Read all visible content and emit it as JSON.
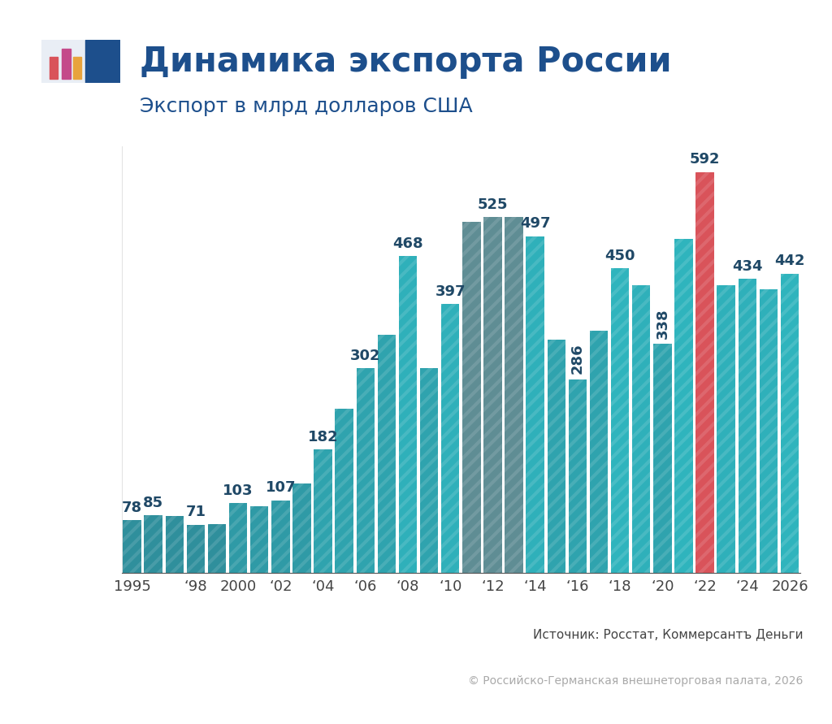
{
  "chart_data": {
    "type": "bar",
    "title": "Динамика экспорта России",
    "subtitle": "Экспорт в млрд долларов США",
    "source": "Источник: Росстат, Коммерсантъ Деньги",
    "copyright": "© Российско-Германская внешнеторговая палата, 2026",
    "categories": [
      "1995",
      null,
      null,
      "‘98",
      null,
      "2000",
      null,
      "‘02",
      null,
      "‘04",
      null,
      "‘06",
      null,
      "‘08",
      null,
      "‘10",
      null,
      "‘12",
      null,
      "‘14",
      null,
      "‘16",
      null,
      "‘18",
      null,
      "‘20",
      null,
      "‘22",
      null,
      "‘24",
      null,
      "2026"
    ],
    "values": [
      78,
      85,
      84,
      71,
      72,
      103,
      98,
      107,
      132,
      182,
      242,
      302,
      352,
      468,
      302,
      397,
      518,
      525,
      526,
      497,
      344,
      286,
      358,
      450,
      425,
      338,
      493,
      592,
      425,
      434,
      419,
      442
    ],
    "value_labels": [
      "78",
      "85",
      null,
      "71",
      null,
      "103",
      null,
      "107",
      null,
      "182",
      null,
      "302",
      null,
      "468",
      null,
      "397",
      null,
      "525",
      null,
      "497",
      null,
      "286",
      null,
      "450",
      null,
      "338",
      null,
      "592",
      null,
      "434",
      null,
      "442"
    ],
    "data_labels": true,
    "colors": [
      "#2f8f9c",
      "#2f8f9c",
      "#2f8f9c",
      "#2f8f9c",
      "#2f8f9c",
      "#2f9aa6",
      "#2f9aa6",
      "#2f9aa6",
      "#2f9aa6",
      "#2fa3ae",
      "#2fa3ae",
      "#2fa3ae",
      "#2fa3ae",
      "#2fb0ba",
      "#2fa3ae",
      "#2fb0ba",
      "#5f8d94",
      "#5f8d94",
      "#5f8d94",
      "#2fb0ba",
      "#2fa3ae",
      "#2fa3ae",
      "#2fa3ae",
      "#2fb4bd",
      "#2fb0ba",
      "#2fa3ae",
      "#2fb4bd",
      "#d9535a",
      "#2fb0ba",
      "#2fb0ba",
      "#2fb0ba",
      "#2fb4bd"
    ],
    "ylim": [
      0,
      630
    ],
    "yticks": [],
    "tick_labels": "x",
    "grid": false
  }
}
